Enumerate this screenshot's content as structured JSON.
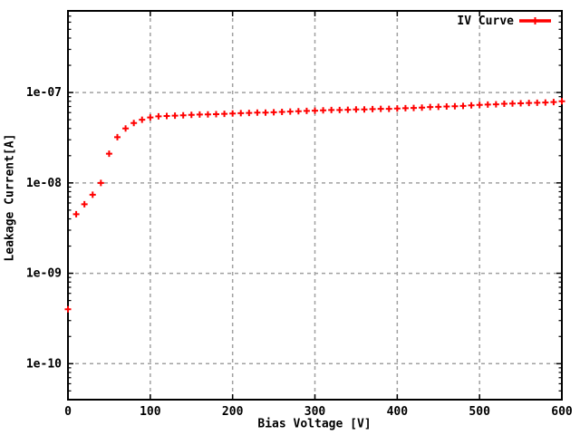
{
  "chart_data": {
    "type": "scatter",
    "title": "",
    "xlabel": "Bias Voltage [V]",
    "ylabel": "Leakage Current[A]",
    "xlim": [
      0,
      600
    ],
    "ylim": [
      4e-11,
      8e-07
    ],
    "yscale": "log",
    "grid": true,
    "legend_position": "top-right",
    "xticks": [
      {
        "v": 0,
        "label": "0"
      },
      {
        "v": 100,
        "label": "100"
      },
      {
        "v": 200,
        "label": "200"
      },
      {
        "v": 300,
        "label": "300"
      },
      {
        "v": 400,
        "label": "400"
      },
      {
        "v": 500,
        "label": "500"
      },
      {
        "v": 600,
        "label": "600"
      }
    ],
    "yticks": [
      {
        "v": 1e-10,
        "label": "1e-10"
      },
      {
        "v": 1e-09,
        "label": "1e-09"
      },
      {
        "v": 1e-08,
        "label": "1e-08"
      },
      {
        "v": 1e-07,
        "label": "1e-07"
      }
    ],
    "colors": {
      "series": "#ff0000",
      "grid": "#a0a0a0",
      "axis": "#000000",
      "background": "#ffffff"
    },
    "series": [
      {
        "name": "IV Curve",
        "color": "#ff0000",
        "marker": "plus",
        "x": [
          0,
          10,
          20,
          30,
          40,
          50,
          60,
          70,
          80,
          90,
          100,
          110,
          120,
          130,
          140,
          150,
          160,
          170,
          180,
          190,
          200,
          210,
          220,
          230,
          240,
          250,
          260,
          270,
          280,
          290,
          300,
          310,
          320,
          330,
          340,
          350,
          360,
          370,
          380,
          390,
          400,
          410,
          420,
          430,
          440,
          450,
          460,
          470,
          480,
          490,
          500,
          510,
          520,
          530,
          540,
          550,
          560,
          570,
          580,
          590,
          600
        ],
        "y": [
          4e-10,
          4.5e-09,
          5.8e-09,
          7.4e-09,
          1e-08,
          2.1e-08,
          3.2e-08,
          4e-08,
          4.6e-08,
          5e-08,
          5.3e-08,
          5.45e-08,
          5.5e-08,
          5.55e-08,
          5.6e-08,
          5.65e-08,
          5.7e-08,
          5.72e-08,
          5.75e-08,
          5.8e-08,
          5.85e-08,
          5.9e-08,
          5.95e-08,
          6e-08,
          6e-08,
          6.05e-08,
          6.1e-08,
          6.15e-08,
          6.2e-08,
          6.25e-08,
          6.3e-08,
          6.35e-08,
          6.4e-08,
          6.4e-08,
          6.45e-08,
          6.5e-08,
          6.5e-08,
          6.55e-08,
          6.6e-08,
          6.6e-08,
          6.65e-08,
          6.7e-08,
          6.75e-08,
          6.8e-08,
          6.9e-08,
          6.95e-08,
          7e-08,
          7.05e-08,
          7.1e-08,
          7.2e-08,
          7.3e-08,
          7.35e-08,
          7.4e-08,
          7.5e-08,
          7.55e-08,
          7.6e-08,
          7.65e-08,
          7.7e-08,
          7.75e-08,
          7.85e-08,
          8e-08
        ]
      }
    ]
  }
}
